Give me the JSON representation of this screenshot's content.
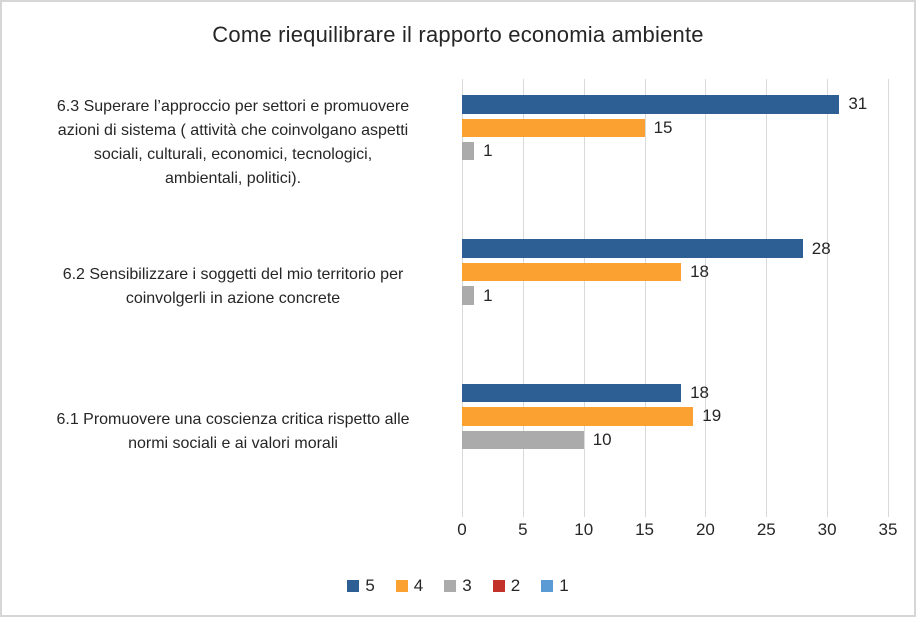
{
  "chart_data": {
    "type": "bar",
    "orientation": "horizontal",
    "title": "Come riequilibrare il rapporto economia ambiente",
    "categories": [
      "6.3 Superare l’approccio per settori e promuovere\nazioni di sistema ( attività che coinvolgano aspetti\nsociali, culturali, economici, tecnologici,\nambientali, politici).",
      "6.2 Sensibilizzare i soggetti del mio territorio per\ncoinvolgerli in azione concrete",
      "6.1  Promuovere una coscienza critica rispetto alle\nnormi sociali e ai valori morali"
    ],
    "series": [
      {
        "name": "5",
        "color": "#2E5F94",
        "values": [
          31,
          28,
          18
        ]
      },
      {
        "name": "4",
        "color": "#FAA132",
        "values": [
          15,
          18,
          19
        ]
      },
      {
        "name": "3",
        "color": "#ABABAB",
        "values": [
          1,
          1,
          10
        ]
      },
      {
        "name": "2",
        "color": "#C3312B",
        "values": [
          null,
          null,
          null
        ]
      },
      {
        "name": "1",
        "color": "#5B9BD5",
        "values": [
          null,
          null,
          null
        ]
      }
    ],
    "xlim": [
      0,
      35
    ],
    "xticks": [
      0,
      5,
      10,
      15,
      20,
      25,
      30,
      35
    ],
    "grid": true,
    "data_labels": true,
    "legend_position": "bottom"
  },
  "styles": {
    "grid_color": "#D9D9D9",
    "text_color": "#262626",
    "border_color": "#D6D6D6",
    "background": "#FFFFFF"
  }
}
